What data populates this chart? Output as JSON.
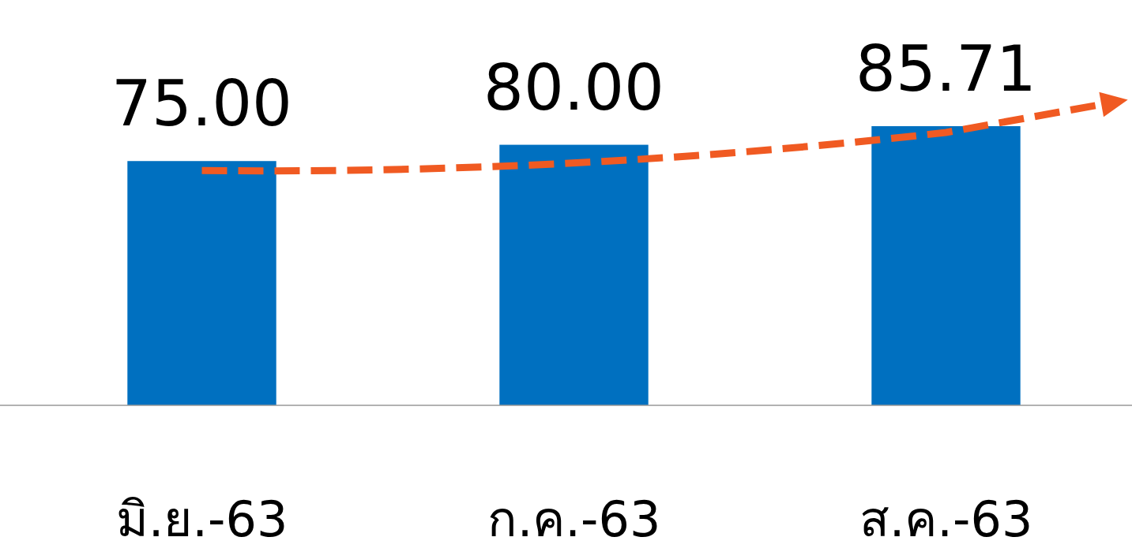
{
  "chart_data": {
    "type": "bar",
    "categories": [
      "มิ.ย.-63",
      "ก.ค.-63",
      "ส.ค.-63"
    ],
    "values": [
      75.0,
      80.0,
      85.71
    ],
    "value_labels": [
      "75.00",
      "80.00",
      "85.71"
    ],
    "color": "#0070c0"
  }
}
